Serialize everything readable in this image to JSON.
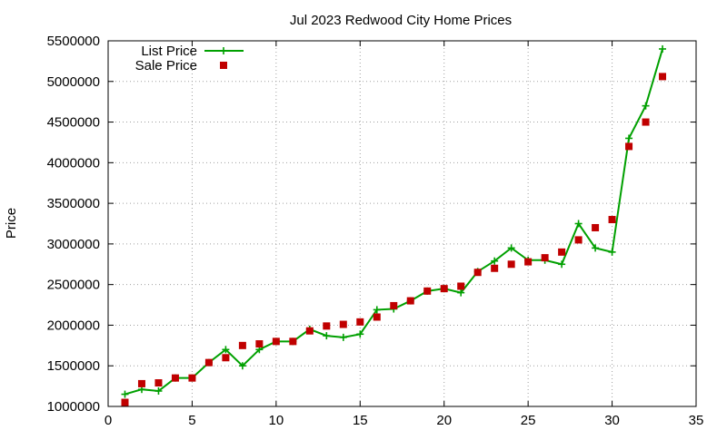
{
  "chart_data": {
    "type": "line",
    "title": "Jul 2023 Redwood City Home Prices",
    "xlabel": "",
    "ylabel": "Price",
    "xlim": [
      0,
      35
    ],
    "ylim": [
      1000000,
      5500000
    ],
    "xticks": [
      0,
      5,
      10,
      15,
      20,
      25,
      30,
      35
    ],
    "yticks": [
      1000000,
      1500000,
      2000000,
      2500000,
      3000000,
      3500000,
      4000000,
      4500000,
      5000000,
      5500000
    ],
    "grid": true,
    "legend_position": "top-left",
    "series": [
      {
        "name": "List Price",
        "style": "line+plus",
        "color": "#00a000",
        "x": [
          1,
          2,
          3,
          4,
          5,
          6,
          7,
          8,
          9,
          10,
          11,
          12,
          13,
          14,
          15,
          16,
          17,
          18,
          19,
          20,
          21,
          22,
          23,
          24,
          25,
          26,
          27,
          28,
          29,
          30,
          31,
          32,
          33
        ],
        "y": [
          1150000,
          1210000,
          1190000,
          1350000,
          1350000,
          1540000,
          1700000,
          1500000,
          1700000,
          1800000,
          1800000,
          1950000,
          1870000,
          1850000,
          1890000,
          2190000,
          2200000,
          2300000,
          2420000,
          2450000,
          2400000,
          2660000,
          2790000,
          2950000,
          2800000,
          2800000,
          2750000,
          3250000,
          2950000,
          2900000,
          4300000,
          4700000,
          5400000
        ]
      },
      {
        "name": "Sale Price",
        "style": "square",
        "color": "#c00000",
        "x": [
          1,
          2,
          3,
          4,
          5,
          6,
          7,
          8,
          9,
          10,
          11,
          12,
          13,
          14,
          15,
          16,
          17,
          18,
          19,
          20,
          21,
          22,
          23,
          24,
          25,
          26,
          27,
          28,
          29,
          30,
          31,
          32,
          33
        ],
        "y": [
          1050000,
          1280000,
          1290000,
          1350000,
          1350000,
          1540000,
          1600000,
          1750000,
          1770000,
          1800000,
          1800000,
          1930000,
          1990000,
          2010000,
          2040000,
          2100000,
          2240000,
          2300000,
          2420000,
          2450000,
          2480000,
          2650000,
          2700000,
          2750000,
          2780000,
          2830000,
          2900000,
          3050000,
          3200000,
          3300000,
          4200000,
          4500000,
          5060000
        ]
      }
    ]
  }
}
